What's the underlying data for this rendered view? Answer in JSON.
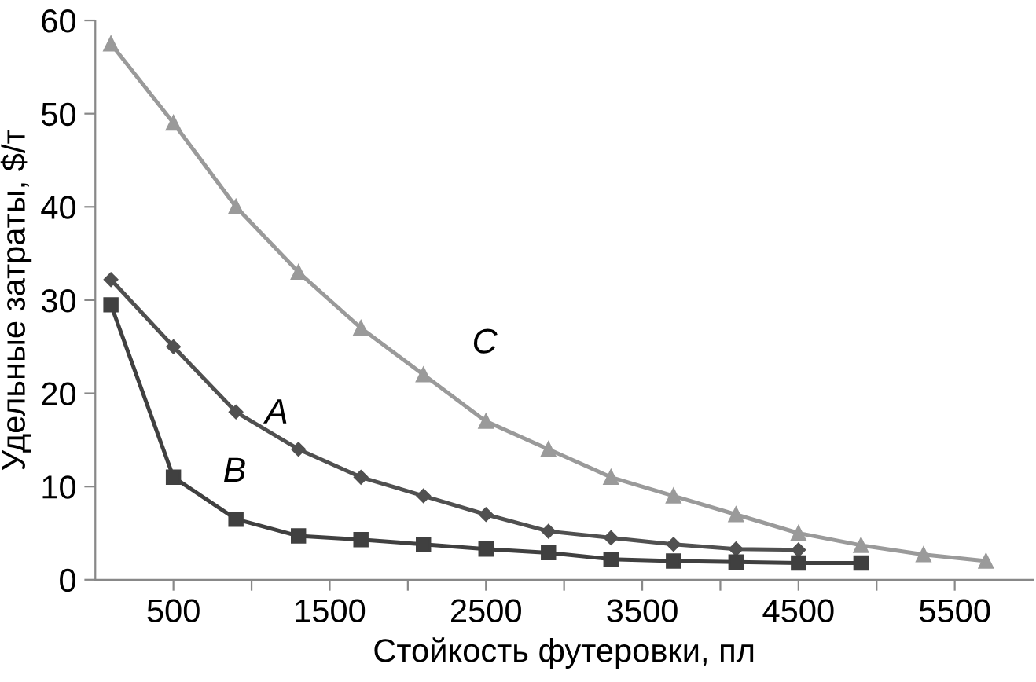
{
  "chart_data": {
    "type": "line",
    "xlabel": "Стойкость футеровки, пл",
    "ylabel": "Удельные затраты, $/т",
    "xlim": [
      0,
      6000
    ],
    "xticks": [
      {
        "value": 500,
        "label": "500"
      },
      {
        "value": 1000,
        "label": null
      },
      {
        "value": 1500,
        "label": "1500"
      },
      {
        "value": 2000,
        "label": null
      },
      {
        "value": 2500,
        "label": "2500"
      },
      {
        "value": 3000,
        "label": null
      },
      {
        "value": 3500,
        "label": "3500"
      },
      {
        "value": 4000,
        "label": null
      },
      {
        "value": 4500,
        "label": "4500"
      },
      {
        "value": 5000,
        "label": null
      },
      {
        "value": 5500,
        "label": "5500"
      }
    ],
    "ylim": [
      0,
      60
    ],
    "yticks": [
      0,
      10,
      20,
      30,
      40,
      50,
      60
    ],
    "grid": false,
    "legend": false,
    "line_style": "solid",
    "series": [
      {
        "name": "C",
        "color": "#9a9a9a",
        "marker": "triangle",
        "x": [
          100,
          500,
          900,
          1300,
          1700,
          2100,
          2500,
          2900,
          3300,
          3700,
          4100,
          4500,
          4900,
          5300,
          5700
        ],
        "values": [
          57.5,
          49,
          40,
          33,
          27,
          22,
          17,
          14,
          11,
          9,
          7,
          5,
          3.7,
          2.7,
          2
        ]
      },
      {
        "name": "A",
        "color": "#505050",
        "marker": "diamond",
        "x": [
          100,
          500,
          900,
          1300,
          1700,
          2100,
          2500,
          2900,
          3300,
          3700,
          4100,
          4500
        ],
        "values": [
          32.2,
          25,
          18,
          14,
          11,
          9,
          7,
          5.2,
          4.5,
          3.8,
          3.3,
          3.2
        ]
      },
      {
        "name": "B",
        "color": "#404040",
        "marker": "square",
        "x": [
          100,
          500,
          900,
          1300,
          1700,
          2100,
          2500,
          2900,
          3300,
          3700,
          4100,
          4500,
          4900
        ],
        "values": [
          29.5,
          11,
          6.5,
          4.7,
          4.3,
          3.8,
          3.3,
          2.9,
          2.2,
          2,
          1.9,
          1.8,
          1.8
        ]
      }
    ]
  }
}
